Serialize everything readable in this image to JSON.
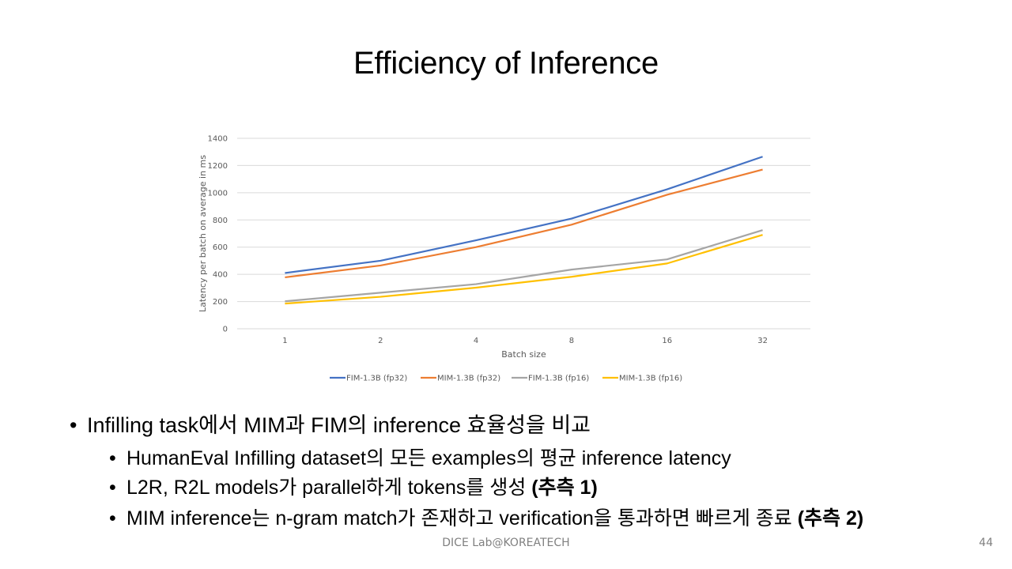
{
  "slide": {
    "title": "Efficiency of Inference",
    "footer": "DICE Lab@KOREATECH",
    "page_number": "44"
  },
  "bullets": [
    {
      "level": 1,
      "parts": [
        {
          "text": "Infilling task에서 MIM과 FIM의 inference 효율성을 비교",
          "bold": false
        }
      ]
    },
    {
      "level": 2,
      "parts": [
        {
          "text": "HumanEval Infilling dataset의 모든 examples의 평균 inference latency",
          "bold": false
        }
      ]
    },
    {
      "level": 2,
      "parts": [
        {
          "text": "L2R, R2L models가 parallel하게 tokens를 생성 ",
          "bold": false
        },
        {
          "text": "(추측 1)",
          "bold": true
        }
      ]
    },
    {
      "level": 2,
      "parts": [
        {
          "text": "MIM inference는 n-gram match가 존재하고 verification을 통과하면 빠르게 종료 ",
          "bold": false
        },
        {
          "text": "(추측 2)",
          "bold": true
        }
      ]
    }
  ],
  "chart_data": {
    "type": "line",
    "title": "",
    "xlabel": "Batch size",
    "ylabel": "Latency per batch on average in ms",
    "categories": [
      "1",
      "2",
      "4",
      "8",
      "16",
      "32"
    ],
    "ylim": [
      0,
      1400
    ],
    "yticks": [
      0,
      200,
      400,
      600,
      800,
      1000,
      1200,
      1400
    ],
    "grid": true,
    "legend_position": "bottom",
    "series": [
      {
        "name": "FIM-1.3B (fp32)",
        "color": "#4472C4",
        "values": [
          410,
          500,
          650,
          810,
          1025,
          1265
        ]
      },
      {
        "name": "MIM-1.3B (fp32)",
        "color": "#ED7D31",
        "values": [
          378,
          465,
          600,
          765,
          985,
          1170
        ]
      },
      {
        "name": "FIM-1.3B (fp16)",
        "color": "#A5A5A5",
        "values": [
          202,
          265,
          328,
          435,
          510,
          725
        ]
      },
      {
        "name": "MIM-1.3B (fp16)",
        "color": "#FFC000",
        "values": [
          185,
          235,
          302,
          382,
          480,
          690
        ]
      }
    ]
  }
}
